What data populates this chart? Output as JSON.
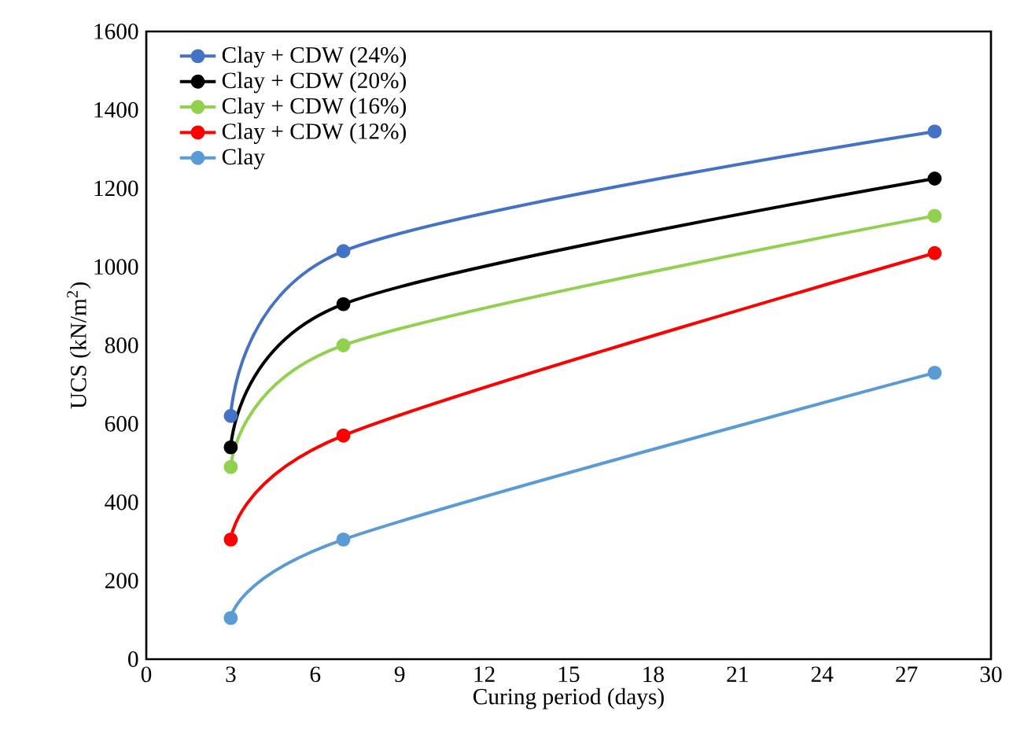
{
  "chart_data": {
    "type": "line",
    "xlabel": "Curing period (days)",
    "ylabel": "UCS  (kN/m$^{2}$)",
    "xlim": [
      0,
      30
    ],
    "xticks": [
      0,
      3,
      6,
      9,
      12,
      15,
      18,
      21,
      24,
      27,
      30
    ],
    "ylim": [
      0,
      1600
    ],
    "yticks": [
      0,
      200,
      400,
      600,
      800,
      1000,
      1200,
      1400,
      1600
    ],
    "x": [
      3,
      7,
      28
    ],
    "grid": false,
    "legend": "top left",
    "marker": "circle",
    "line_style": "solid",
    "series": [
      {
        "name": "Clay + CDW (24%)",
        "color": "#4472c4",
        "values": [
          620,
          1040,
          1345
        ]
      },
      {
        "name": "Clay + CDW (20%)",
        "color": "#000000",
        "values": [
          540,
          905,
          1225
        ]
      },
      {
        "name": "Clay + CDW (16%)",
        "color": "#92d050",
        "values": [
          490,
          800,
          1130
        ]
      },
      {
        "name": "Clay + CDW (12%)",
        "color": "#ff0000",
        "values": [
          305,
          570,
          1035
        ]
      },
      {
        "name": "Clay",
        "color": "#5b9bd5",
        "values": [
          105,
          305,
          730
        ]
      }
    ]
  }
}
